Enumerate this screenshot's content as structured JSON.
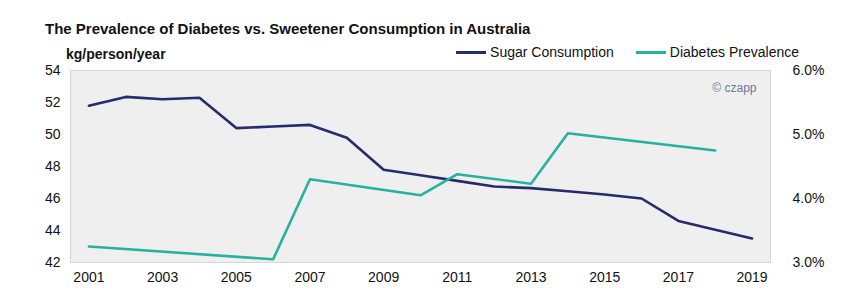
{
  "chart_data": {
    "type": "line",
    "title": "The Prevalence of Diabetes vs. Sweetener Consumption in Australia",
    "y_label": "kg/person/year",
    "xlim": [
      2000.5,
      2019.5
    ],
    "xticks": [
      2001,
      2003,
      2005,
      2007,
      2009,
      2011,
      2013,
      2015,
      2017,
      2019
    ],
    "ylim": [
      42,
      54
    ],
    "yticks": [
      42,
      44,
      46,
      48,
      50,
      52,
      54
    ],
    "y2lim": [
      3,
      6
    ],
    "y2ticks": [
      {
        "value": 3,
        "label": "3.0%"
      },
      {
        "value": 4,
        "label": "4.0%"
      },
      {
        "value": 5,
        "label": "5.0%"
      },
      {
        "value": 6,
        "label": "6.0%"
      }
    ],
    "grid": false,
    "legend": "top-right",
    "series": [
      {
        "name": "Sugar Consumption",
        "color": "#262b6b",
        "x": [
          2001,
          2002,
          2003,
          2004,
          2005,
          2006,
          2007,
          2008,
          2009,
          2010,
          2011,
          2012,
          2013,
          2014,
          2015,
          2016,
          2017,
          2018,
          2019
        ],
        "values": [
          51.8,
          52.35,
          52.2,
          52.3,
          50.4,
          50.5,
          50.6,
          49.8,
          47.8,
          47.45,
          47.1,
          46.75,
          46.65,
          46.45,
          46.25,
          46.0,
          44.6,
          44.05,
          43.5
        ]
      },
      {
        "name": "Diabetes Prevalence",
        "color": "#27b1a1",
        "axis": "y2",
        "x": [
          2001,
          2006,
          2007,
          2010,
          2011,
          2013,
          2014,
          2018
        ],
        "values": [
          3.25,
          3.05,
          4.3,
          4.05,
          4.38,
          4.23,
          5.02,
          4.75
        ]
      }
    ],
    "annotations": [
      "© czapp"
    ]
  }
}
